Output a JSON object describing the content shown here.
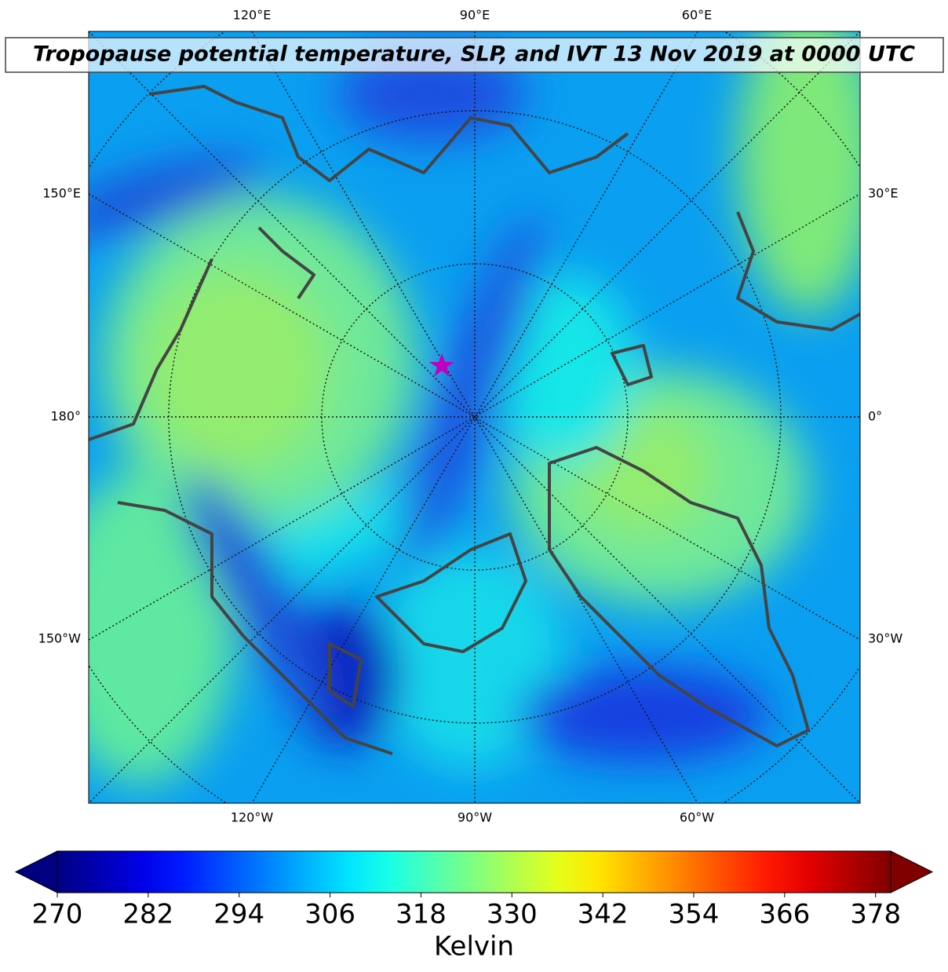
{
  "map": {
    "title": "Tropopause potential temperature, SLP, and IVT 13 Nov 2019 at 0000 UTC",
    "lon_labels": {
      "top": [
        "120°E",
        "90°E",
        "60°E"
      ],
      "bottom": [
        "120°W",
        "90°W",
        "60°W"
      ],
      "left": [
        "150°E",
        "180°",
        "150°W"
      ],
      "right": [
        "30°E",
        "0°",
        "30°W"
      ]
    }
  },
  "colorbar": {
    "label": "Kelvin",
    "colormap": "jet",
    "lim": [
      270,
      380
    ],
    "ticks": [
      270,
      282,
      294,
      306,
      318,
      330,
      342,
      354,
      366,
      378
    ],
    "extend": "both"
  }
}
